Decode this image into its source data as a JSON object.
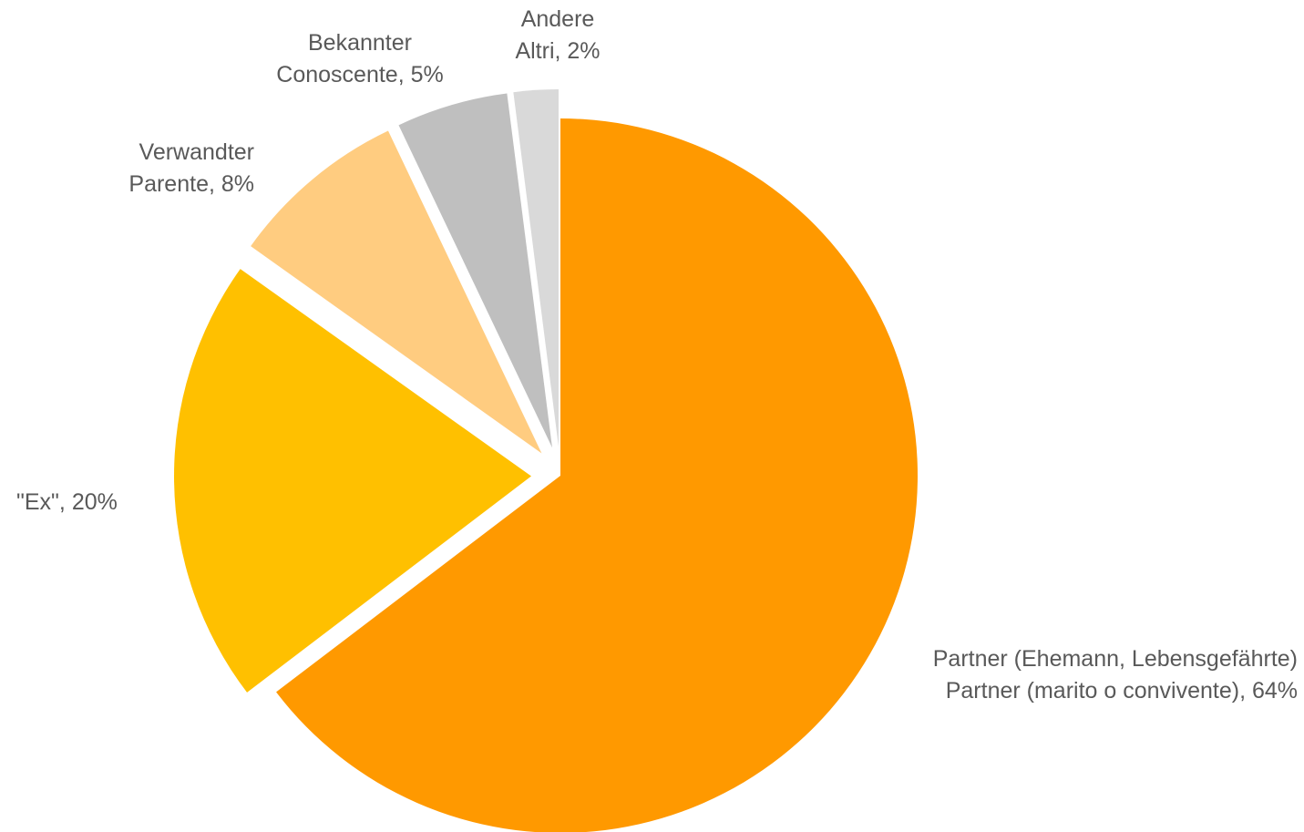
{
  "chart_data": {
    "type": "pie",
    "title": "",
    "start_angle_deg": 0,
    "direction": "clockwise",
    "legend": "none",
    "slices": [
      {
        "line1": "Partner (Ehemann, Lebensgefährte)",
        "line2": "Partner (marito o convivente), 64%",
        "value": 64,
        "color": "#FF9900",
        "exploded": false
      },
      {
        "line1": "\"Ex\", 20%",
        "line2": "",
        "value": 20,
        "color": "#FFC000",
        "exploded": true
      },
      {
        "line1": "Verwandter",
        "line2": "Parente, 8%",
        "value": 8,
        "color": "#FFCC80",
        "exploded": true
      },
      {
        "line1": "Bekannter",
        "line2": "Conoscente, 5%",
        "value": 5,
        "color": "#BFBFBF",
        "exploded": true
      },
      {
        "line1": "Andere",
        "line2": "Altri, 2%",
        "value": 2,
        "color": "#D9D9D9",
        "exploded": true
      }
    ]
  }
}
